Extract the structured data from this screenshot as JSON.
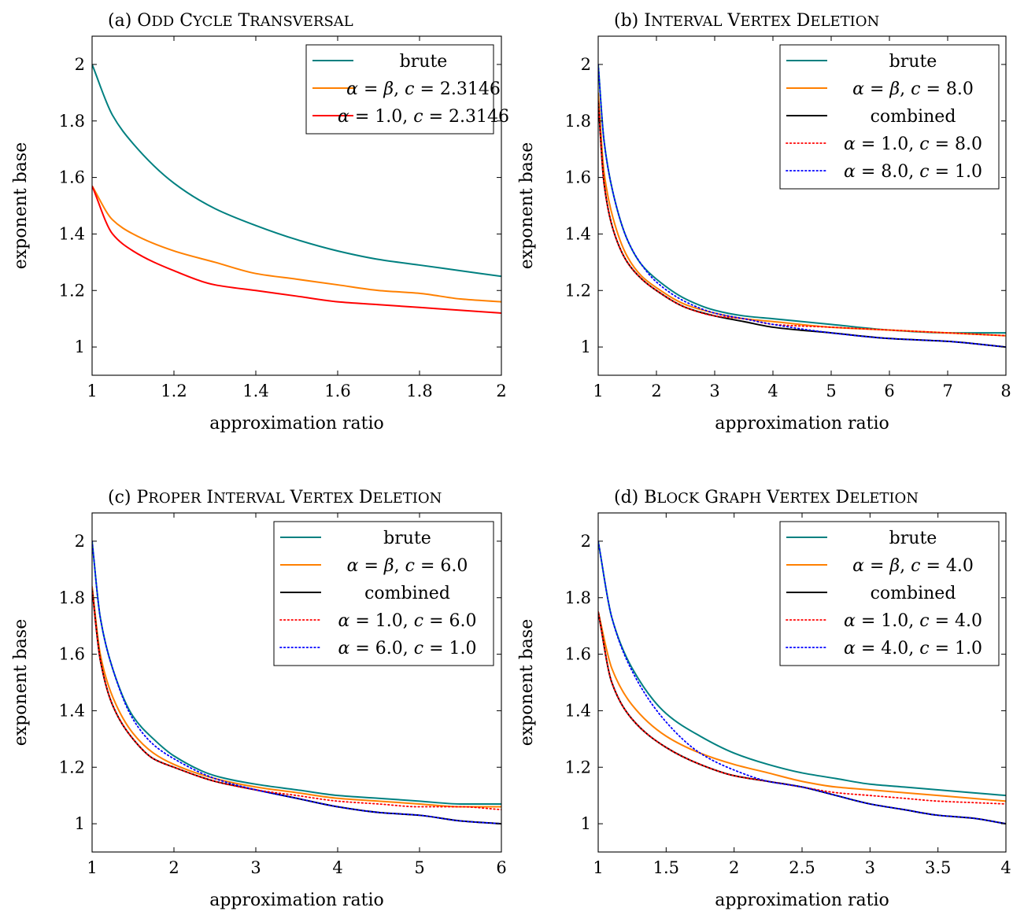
{
  "chart_data": [
    {
      "type": "line",
      "title_prefix": "(a)",
      "title": "Odd Cycle Transversal",
      "xlabel": "approximation ratio",
      "ylabel": "exponent base",
      "xlim": [
        1,
        2
      ],
      "ylim": [
        0.9,
        2.1
      ],
      "xticks": [
        1,
        1.2,
        1.4,
        1.6,
        1.8,
        2
      ],
      "xtick_labels": [
        "1",
        "1.2",
        "1.4",
        "1.6",
        "1.8",
        "2"
      ],
      "yticks": [
        1,
        1.2,
        1.4,
        1.6,
        1.8,
        2
      ],
      "ytick_labels": [
        "1",
        "1.2",
        "1.4",
        "1.6",
        "1.8",
        "2"
      ],
      "legend_position": "top-right",
      "series": [
        {
          "name": "brute",
          "color": "#008080",
          "style": "solid",
          "x": [
            1,
            1.05,
            1.1,
            1.2,
            1.3,
            1.4,
            1.5,
            1.6,
            1.7,
            1.8,
            1.9,
            2
          ],
          "y": [
            2,
            1.82,
            1.72,
            1.58,
            1.49,
            1.43,
            1.38,
            1.34,
            1.31,
            1.29,
            1.27,
            1.25
          ]
        },
        {
          "name": "α = β, c = 2.3146",
          "color": "#ff8000",
          "style": "solid",
          "x": [
            1,
            1.05,
            1.1,
            1.2,
            1.3,
            1.4,
            1.5,
            1.6,
            1.7,
            1.8,
            1.9,
            2
          ],
          "y": [
            1.57,
            1.45,
            1.4,
            1.34,
            1.3,
            1.26,
            1.24,
            1.22,
            1.2,
            1.19,
            1.17,
            1.16
          ]
        },
        {
          "name": "α = 1.0, c = 2.3146",
          "color": "#ff0000",
          "style": "solid",
          "x": [
            1,
            1.05,
            1.1,
            1.2,
            1.3,
            1.4,
            1.5,
            1.6,
            1.7,
            1.8,
            1.9,
            2
          ],
          "y": [
            1.57,
            1.4,
            1.34,
            1.27,
            1.22,
            1.2,
            1.18,
            1.16,
            1.15,
            1.14,
            1.13,
            1.12
          ]
        }
      ]
    },
    {
      "type": "line",
      "title_prefix": "(b)",
      "title": "Interval Vertex Deletion",
      "xlabel": "approximation ratio",
      "ylabel": "exponent base",
      "xlim": [
        1,
        8
      ],
      "ylim": [
        0.9,
        2.1
      ],
      "xticks": [
        1,
        2,
        3,
        4,
        5,
        6,
        7,
        8
      ],
      "xtick_labels": [
        "1",
        "2",
        "3",
        "4",
        "5",
        "6",
        "7",
        "8"
      ],
      "yticks": [
        1,
        1.2,
        1.4,
        1.6,
        1.8,
        2
      ],
      "ytick_labels": [
        "1",
        "1.2",
        "1.4",
        "1.6",
        "1.8",
        "2"
      ],
      "legend_position": "top-right",
      "series": [
        {
          "name": "brute",
          "color": "#008080",
          "style": "solid",
          "x": [
            1,
            1.1,
            1.25,
            1.5,
            1.75,
            2,
            2.5,
            3,
            3.5,
            4,
            5,
            6,
            7,
            8
          ],
          "y": [
            2,
            1.73,
            1.55,
            1.38,
            1.29,
            1.24,
            1.17,
            1.13,
            1.11,
            1.1,
            1.08,
            1.06,
            1.05,
            1.05
          ]
        },
        {
          "name": "α = β, c = 8.0",
          "color": "#ff8000",
          "style": "solid",
          "x": [
            1,
            1.1,
            1.25,
            1.5,
            1.75,
            2,
            2.5,
            3,
            3.5,
            4,
            5,
            6,
            7,
            8
          ],
          "y": [
            1.9,
            1.62,
            1.46,
            1.32,
            1.25,
            1.21,
            1.15,
            1.12,
            1.1,
            1.09,
            1.07,
            1.06,
            1.05,
            1.04
          ]
        },
        {
          "name": "combined",
          "color": "#000000",
          "style": "solid",
          "x": [
            1,
            1.1,
            1.25,
            1.5,
            1.75,
            2,
            2.5,
            3,
            3.5,
            4,
            5,
            6,
            7,
            8
          ],
          "y": [
            1.87,
            1.58,
            1.42,
            1.3,
            1.24,
            1.2,
            1.14,
            1.11,
            1.09,
            1.07,
            1.05,
            1.03,
            1.02,
            1
          ]
        },
        {
          "name": "α = 1.0, c = 8.0",
          "color": "#ff0000",
          "style": "dotted",
          "x": [
            1,
            1.1,
            1.25,
            1.5,
            1.75,
            2,
            2.5,
            3,
            3.5,
            4,
            5,
            6,
            7,
            8
          ],
          "y": [
            1.87,
            1.58,
            1.42,
            1.3,
            1.24,
            1.2,
            1.14,
            1.11,
            1.1,
            1.08,
            1.07,
            1.06,
            1.05,
            1.04
          ]
        },
        {
          "name": "α = 8.0, c = 1.0",
          "color": "#0000ff",
          "style": "dotted",
          "x": [
            1,
            1.1,
            1.25,
            1.5,
            1.75,
            2,
            2.5,
            3,
            3.5,
            4,
            5,
            6,
            7,
            8
          ],
          "y": [
            2,
            1.73,
            1.55,
            1.38,
            1.29,
            1.23,
            1.16,
            1.12,
            1.1,
            1.08,
            1.05,
            1.03,
            1.02,
            1
          ]
        }
      ]
    },
    {
      "type": "line",
      "title_prefix": "(c)",
      "title": "Proper Interval Vertex Deletion",
      "xlabel": "approximation ratio",
      "ylabel": "exponent base",
      "xlim": [
        1,
        6
      ],
      "ylim": [
        0.9,
        2.1
      ],
      "xticks": [
        1,
        2,
        3,
        4,
        5,
        6
      ],
      "xtick_labels": [
        "1",
        "2",
        "3",
        "4",
        "5",
        "6"
      ],
      "yticks": [
        1,
        1.2,
        1.4,
        1.6,
        1.8,
        2
      ],
      "ytick_labels": [
        "1",
        "1.2",
        "1.4",
        "1.6",
        "1.8",
        "2"
      ],
      "legend_position": "top-right",
      "series": [
        {
          "name": "brute",
          "color": "#008080",
          "style": "solid",
          "x": [
            1,
            1.1,
            1.25,
            1.5,
            1.75,
            2,
            2.5,
            3,
            3.5,
            4,
            4.5,
            5,
            5.5,
            6
          ],
          "y": [
            2,
            1.73,
            1.55,
            1.38,
            1.3,
            1.24,
            1.17,
            1.14,
            1.12,
            1.1,
            1.09,
            1.08,
            1.07,
            1.07
          ]
        },
        {
          "name": "α = β, c = 6.0",
          "color": "#ff8000",
          "style": "solid",
          "x": [
            1,
            1.1,
            1.25,
            1.5,
            1.75,
            2,
            2.5,
            3,
            3.5,
            4,
            4.5,
            5,
            5.5,
            6
          ],
          "y": [
            1.84,
            1.6,
            1.45,
            1.32,
            1.25,
            1.21,
            1.16,
            1.13,
            1.11,
            1.09,
            1.08,
            1.07,
            1.06,
            1.06
          ]
        },
        {
          "name": "combined",
          "color": "#000000",
          "style": "solid",
          "x": [
            1,
            1.1,
            1.25,
            1.5,
            1.75,
            2,
            2.5,
            3,
            3.5,
            4,
            4.5,
            5,
            5.5,
            6
          ],
          "y": [
            1.83,
            1.58,
            1.42,
            1.3,
            1.23,
            1.2,
            1.15,
            1.12,
            1.09,
            1.06,
            1.04,
            1.03,
            1.01,
            1
          ]
        },
        {
          "name": "α = 1.0, c = 6.0",
          "color": "#ff0000",
          "style": "dotted",
          "x": [
            1,
            1.1,
            1.25,
            1.5,
            1.75,
            2,
            2.5,
            3,
            3.5,
            4,
            4.5,
            5,
            5.5,
            6
          ],
          "y": [
            1.83,
            1.58,
            1.42,
            1.3,
            1.23,
            1.2,
            1.15,
            1.12,
            1.1,
            1.08,
            1.07,
            1.06,
            1.06,
            1.05
          ]
        },
        {
          "name": "α = 6.0, c = 1.0",
          "color": "#0000ff",
          "style": "dotted",
          "x": [
            1,
            1.1,
            1.25,
            1.5,
            1.75,
            2,
            2.5,
            3,
            3.5,
            4,
            4.5,
            5,
            5.5,
            6
          ],
          "y": [
            2,
            1.73,
            1.55,
            1.37,
            1.28,
            1.23,
            1.16,
            1.12,
            1.09,
            1.06,
            1.04,
            1.03,
            1.01,
            1
          ]
        }
      ]
    },
    {
      "type": "line",
      "title_prefix": "(d)",
      "title": "Block Graph Vertex Deletion",
      "xlabel": "approximation ratio",
      "ylabel": "exponent base",
      "xlim": [
        1,
        4
      ],
      "ylim": [
        0.9,
        2.1
      ],
      "xticks": [
        1,
        1.5,
        2,
        2.5,
        3,
        3.5,
        4
      ],
      "xtick_labels": [
        "1",
        "1.5",
        "2",
        "2.5",
        "3",
        "3.5",
        "4"
      ],
      "yticks": [
        1,
        1.2,
        1.4,
        1.6,
        1.8,
        2
      ],
      "ytick_labels": [
        "1",
        "1.2",
        "1.4",
        "1.6",
        "1.8",
        "2"
      ],
      "legend_position": "top-right",
      "series": [
        {
          "name": "brute",
          "color": "#008080",
          "style": "solid",
          "x": [
            1,
            1.1,
            1.25,
            1.5,
            1.75,
            2,
            2.25,
            2.5,
            2.75,
            3,
            3.25,
            3.5,
            3.75,
            4
          ],
          "y": [
            2,
            1.73,
            1.55,
            1.39,
            1.31,
            1.25,
            1.21,
            1.18,
            1.16,
            1.14,
            1.13,
            1.12,
            1.11,
            1.1
          ]
        },
        {
          "name": "α = β, c = 4.0",
          "color": "#ff8000",
          "style": "solid",
          "x": [
            1,
            1.1,
            1.25,
            1.5,
            1.75,
            2,
            2.25,
            2.5,
            2.75,
            3,
            3.25,
            3.5,
            3.75,
            4
          ],
          "y": [
            1.75,
            1.55,
            1.42,
            1.31,
            1.25,
            1.21,
            1.18,
            1.15,
            1.13,
            1.12,
            1.11,
            1.1,
            1.09,
            1.08
          ]
        },
        {
          "name": "combined",
          "color": "#000000",
          "style": "solid",
          "x": [
            1,
            1.1,
            1.25,
            1.5,
            1.75,
            2,
            2.25,
            2.5,
            2.75,
            3,
            3.25,
            3.5,
            3.75,
            4
          ],
          "y": [
            1.75,
            1.5,
            1.37,
            1.27,
            1.21,
            1.17,
            1.15,
            1.13,
            1.1,
            1.07,
            1.05,
            1.03,
            1.02,
            1
          ]
        },
        {
          "name": "α = 1.0, c = 4.0",
          "color": "#ff0000",
          "style": "dotted",
          "x": [
            1,
            1.1,
            1.25,
            1.5,
            1.75,
            2,
            2.25,
            2.5,
            2.75,
            3,
            3.25,
            3.5,
            3.75,
            4
          ],
          "y": [
            1.75,
            1.5,
            1.37,
            1.27,
            1.21,
            1.17,
            1.15,
            1.13,
            1.11,
            1.1,
            1.09,
            1.08,
            1.075,
            1.07
          ]
        },
        {
          "name": "α = 4.0, c = 1.0",
          "color": "#0000ff",
          "style": "dotted",
          "x": [
            1,
            1.1,
            1.25,
            1.5,
            1.75,
            2,
            2.25,
            2.5,
            2.75,
            3,
            3.25,
            3.5,
            3.75,
            4
          ],
          "y": [
            2,
            1.73,
            1.54,
            1.36,
            1.25,
            1.19,
            1.15,
            1.13,
            1.1,
            1.07,
            1.05,
            1.03,
            1.02,
            1
          ]
        }
      ]
    }
  ]
}
